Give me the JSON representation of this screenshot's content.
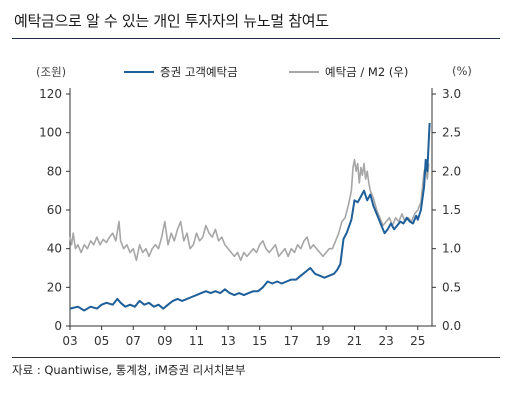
{
  "title": "예탁금으로 알 수 있는 개인 투자자의 뉴노멀 참여도",
  "source": "자료 : Quantiwise, 통계청, iM증권 리서치본부",
  "chart_data": {
    "type": "line",
    "left_axis_unit": "(조원)",
    "right_axis_unit": "(%)",
    "x_tick_labels": [
      "03",
      "05",
      "07",
      "09",
      "11",
      "13",
      "15",
      "17",
      "19",
      "21",
      "23",
      "25"
    ],
    "x_tick_years": [
      2003,
      2005,
      2007,
      2009,
      2011,
      2013,
      2015,
      2017,
      2019,
      2021,
      2023,
      2025
    ],
    "xlim": [
      2003.0,
      2025.9
    ],
    "left_ylim": [
      0,
      120
    ],
    "left_yticks": [
      0,
      20,
      40,
      60,
      80,
      100,
      120
    ],
    "right_ylim": [
      0.0,
      3.0
    ],
    "right_yticks": [
      "0.0",
      "0.5",
      "1.0",
      "1.5",
      "2.0",
      "2.5",
      "3.0"
    ],
    "grid": false,
    "legend_position": "top-center",
    "series": [
      {
        "name": "증권 고객예탁금",
        "axis": "left",
        "color": "#1f5f99",
        "points": [
          [
            2003.0,
            9
          ],
          [
            2003.5,
            10
          ],
          [
            2003.9,
            8
          ],
          [
            2004.3,
            10
          ],
          [
            2004.7,
            9
          ],
          [
            2005.0,
            11
          ],
          [
            2005.3,
            12
          ],
          [
            2005.7,
            11
          ],
          [
            2006.0,
            14
          ],
          [
            2006.2,
            12
          ],
          [
            2006.5,
            10
          ],
          [
            2006.8,
            11
          ],
          [
            2007.1,
            10
          ],
          [
            2007.4,
            13
          ],
          [
            2007.7,
            11
          ],
          [
            2008.0,
            12
          ],
          [
            2008.3,
            10
          ],
          [
            2008.6,
            11
          ],
          [
            2008.9,
            9
          ],
          [
            2009.2,
            11
          ],
          [
            2009.5,
            13
          ],
          [
            2009.8,
            14
          ],
          [
            2010.1,
            13
          ],
          [
            2010.4,
            14
          ],
          [
            2010.7,
            15
          ],
          [
            2011.0,
            16
          ],
          [
            2011.3,
            17
          ],
          [
            2011.6,
            18
          ],
          [
            2011.9,
            17
          ],
          [
            2012.2,
            18
          ],
          [
            2012.5,
            17
          ],
          [
            2012.8,
            19
          ],
          [
            2013.1,
            17
          ],
          [
            2013.4,
            16
          ],
          [
            2013.7,
            17
          ],
          [
            2014.0,
            16
          ],
          [
            2014.3,
            17
          ],
          [
            2014.6,
            18
          ],
          [
            2014.9,
            18
          ],
          [
            2015.2,
            20
          ],
          [
            2015.5,
            23
          ],
          [
            2015.8,
            22
          ],
          [
            2016.1,
            23
          ],
          [
            2016.4,
            22
          ],
          [
            2016.7,
            23
          ],
          [
            2017.0,
            24
          ],
          [
            2017.3,
            24
          ],
          [
            2017.6,
            26
          ],
          [
            2017.9,
            28
          ],
          [
            2018.2,
            30
          ],
          [
            2018.5,
            27
          ],
          [
            2018.8,
            26
          ],
          [
            2019.1,
            25
          ],
          [
            2019.4,
            26
          ],
          [
            2019.7,
            27
          ],
          [
            2019.9,
            29
          ],
          [
            2020.1,
            32
          ],
          [
            2020.3,
            45
          ],
          [
            2020.5,
            48
          ],
          [
            2020.8,
            55
          ],
          [
            2021.0,
            65
          ],
          [
            2021.2,
            64
          ],
          [
            2021.4,
            67
          ],
          [
            2021.6,
            70
          ],
          [
            2021.8,
            65
          ],
          [
            2022.0,
            68
          ],
          [
            2022.2,
            62
          ],
          [
            2022.4,
            58
          ],
          [
            2022.7,
            52
          ],
          [
            2022.9,
            48
          ],
          [
            2023.1,
            50
          ],
          [
            2023.3,
            53
          ],
          [
            2023.5,
            50
          ],
          [
            2023.7,
            52
          ],
          [
            2023.9,
            54
          ],
          [
            2024.1,
            53
          ],
          [
            2024.3,
            56
          ],
          [
            2024.5,
            54
          ],
          [
            2024.7,
            53
          ],
          [
            2024.9,
            57
          ],
          [
            2025.0,
            55
          ],
          [
            2025.2,
            60
          ],
          [
            2025.4,
            72
          ],
          [
            2025.5,
            86
          ],
          [
            2025.6,
            80
          ],
          [
            2025.75,
            105
          ]
        ]
      },
      {
        "name": "예탁금 / M2 (우)",
        "axis": "right",
        "color": "#a6a6a6",
        "points": [
          [
            2003.0,
            1.15
          ],
          [
            2003.1,
            1.05
          ],
          [
            2003.2,
            1.2
          ],
          [
            2003.35,
            1.0
          ],
          [
            2003.5,
            1.05
          ],
          [
            2003.7,
            0.95
          ],
          [
            2003.9,
            1.05
          ],
          [
            2004.1,
            1.0
          ],
          [
            2004.3,
            1.1
          ],
          [
            2004.5,
            1.05
          ],
          [
            2004.7,
            1.15
          ],
          [
            2004.9,
            1.05
          ],
          [
            2005.1,
            1.12
          ],
          [
            2005.3,
            1.08
          ],
          [
            2005.5,
            1.15
          ],
          [
            2005.7,
            1.2
          ],
          [
            2005.9,
            1.1
          ],
          [
            2006.1,
            1.35
          ],
          [
            2006.2,
            1.1
          ],
          [
            2006.4,
            1.0
          ],
          [
            2006.6,
            1.05
          ],
          [
            2006.8,
            0.95
          ],
          [
            2007.0,
            1.0
          ],
          [
            2007.2,
            0.85
          ],
          [
            2007.4,
            1.05
          ],
          [
            2007.6,
            0.95
          ],
          [
            2007.8,
            1.0
          ],
          [
            2008.0,
            0.9
          ],
          [
            2008.2,
            1.0
          ],
          [
            2008.4,
            1.05
          ],
          [
            2008.6,
            1.0
          ],
          [
            2008.8,
            1.15
          ],
          [
            2009.0,
            1.35
          ],
          [
            2009.2,
            1.05
          ],
          [
            2009.4,
            1.2
          ],
          [
            2009.6,
            1.1
          ],
          [
            2009.8,
            1.25
          ],
          [
            2010.0,
            1.35
          ],
          [
            2010.2,
            1.1
          ],
          [
            2010.4,
            1.2
          ],
          [
            2010.6,
            1.0
          ],
          [
            2010.8,
            1.05
          ],
          [
            2011.0,
            1.2
          ],
          [
            2011.2,
            1.1
          ],
          [
            2011.4,
            1.15
          ],
          [
            2011.6,
            1.3
          ],
          [
            2011.8,
            1.2
          ],
          [
            2012.0,
            1.15
          ],
          [
            2012.2,
            1.25
          ],
          [
            2012.4,
            1.1
          ],
          [
            2012.6,
            1.15
          ],
          [
            2012.8,
            1.05
          ],
          [
            2013.0,
            1.0
          ],
          [
            2013.2,
            0.95
          ],
          [
            2013.4,
            0.9
          ],
          [
            2013.6,
            0.95
          ],
          [
            2013.8,
            0.85
          ],
          [
            2014.0,
            0.95
          ],
          [
            2014.2,
            0.9
          ],
          [
            2014.4,
            0.95
          ],
          [
            2014.6,
            1.0
          ],
          [
            2014.8,
            0.95
          ],
          [
            2015.0,
            1.05
          ],
          [
            2015.2,
            1.1
          ],
          [
            2015.4,
            1.0
          ],
          [
            2015.6,
            0.95
          ],
          [
            2015.8,
            1.0
          ],
          [
            2016.0,
            1.05
          ],
          [
            2016.2,
            0.9
          ],
          [
            2016.4,
            0.95
          ],
          [
            2016.6,
            1.0
          ],
          [
            2016.8,
            0.9
          ],
          [
            2017.0,
            1.0
          ],
          [
            2017.2,
            0.95
          ],
          [
            2017.4,
            1.05
          ],
          [
            2017.6,
            1.0
          ],
          [
            2017.8,
            1.1
          ],
          [
            2018.0,
            1.15
          ],
          [
            2018.2,
            1.0
          ],
          [
            2018.4,
            1.05
          ],
          [
            2018.6,
            1.0
          ],
          [
            2018.8,
            0.95
          ],
          [
            2019.0,
            0.9
          ],
          [
            2019.2,
            0.95
          ],
          [
            2019.4,
            1.0
          ],
          [
            2019.6,
            1.0
          ],
          [
            2019.8,
            1.1
          ],
          [
            2020.0,
            1.2
          ],
          [
            2020.2,
            1.35
          ],
          [
            2020.4,
            1.4
          ],
          [
            2020.6,
            1.55
          ],
          [
            2020.8,
            1.75
          ],
          [
            2020.9,
            2.05
          ],
          [
            2021.0,
            2.15
          ],
          [
            2021.1,
            2.0
          ],
          [
            2021.2,
            2.1
          ],
          [
            2021.3,
            1.85
          ],
          [
            2021.4,
            2.05
          ],
          [
            2021.5,
            1.95
          ],
          [
            2021.6,
            2.1
          ],
          [
            2021.7,
            1.9
          ],
          [
            2021.8,
            2.0
          ],
          [
            2021.9,
            1.85
          ],
          [
            2022.0,
            1.75
          ],
          [
            2022.2,
            1.65
          ],
          [
            2022.4,
            1.5
          ],
          [
            2022.6,
            1.4
          ],
          [
            2022.8,
            1.3
          ],
          [
            2023.0,
            1.35
          ],
          [
            2023.2,
            1.4
          ],
          [
            2023.4,
            1.3
          ],
          [
            2023.6,
            1.4
          ],
          [
            2023.8,
            1.35
          ],
          [
            2024.0,
            1.45
          ],
          [
            2024.2,
            1.35
          ],
          [
            2024.4,
            1.4
          ],
          [
            2024.6,
            1.35
          ],
          [
            2024.8,
            1.45
          ],
          [
            2025.0,
            1.5
          ],
          [
            2025.1,
            1.55
          ],
          [
            2025.2,
            1.6
          ],
          [
            2025.3,
            1.8
          ],
          [
            2025.4,
            2.0
          ],
          [
            2025.5,
            2.05
          ],
          [
            2025.6,
            1.9
          ],
          [
            2025.7,
            2.1
          ]
        ]
      }
    ]
  }
}
